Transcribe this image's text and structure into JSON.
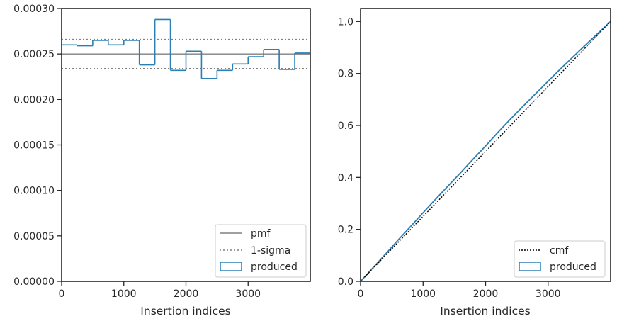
{
  "colors": {
    "hist": "#2a7fb3",
    "pmf": "#808080",
    "sigma": "#808080",
    "cmf": "#000000",
    "axis": "#262626"
  },
  "chart_data": [
    {
      "type": "step",
      "xlabel": "Insertion indices",
      "ylabel": "",
      "xlim": [
        0,
        4000
      ],
      "ylim": [
        0,
        0.0003
      ],
      "xticks": [
        0,
        1000,
        2000,
        3000
      ],
      "xtick_labels": [
        "0",
        "1000",
        "2000",
        "3000"
      ],
      "yticks": [
        0,
        5e-05,
        0.0001,
        0.00015,
        0.0002,
        0.00025,
        0.0003
      ],
      "ytick_labels": [
        "0.00000",
        "0.00005",
        "0.00010",
        "0.00015",
        "0.00020",
        "0.00025",
        "0.00030"
      ],
      "pmf": 0.00025,
      "sigma_band": [
        0.000234,
        0.000266
      ],
      "bin_edges": [
        0,
        250,
        500,
        750,
        1000,
        1250,
        1500,
        1750,
        2000,
        2250,
        2500,
        2750,
        3000,
        3250,
        3500,
        3750,
        4000
      ],
      "produced": [
        0.00026,
        0.000259,
        0.000265,
        0.00026,
        0.000265,
        0.000238,
        0.000288,
        0.000232,
        0.000253,
        0.000223,
        0.000232,
        0.000239,
        0.000247,
        0.000255,
        0.000233,
        0.000251
      ],
      "legend_position": "lower right",
      "legend": [
        "pmf",
        "1-sigma",
        "produced"
      ]
    },
    {
      "type": "step",
      "xlabel": "Insertion indices",
      "ylabel": "",
      "xlim": [
        0,
        4000
      ],
      "ylim": [
        0,
        1.05
      ],
      "xticks": [
        0,
        1000,
        2000,
        3000
      ],
      "xtick_labels": [
        "0",
        "1000",
        "2000",
        "3000"
      ],
      "yticks": [
        0,
        0.2,
        0.4,
        0.6,
        0.8,
        1.0
      ],
      "ytick_labels": [
        "0.0",
        "0.2",
        "0.4",
        "0.6",
        "0.8",
        "1.0"
      ],
      "cmf_x": [
        0,
        4000
      ],
      "cmf_y": [
        0,
        1
      ],
      "produced_x": [
        0,
        200,
        400,
        600,
        800,
        1000,
        1200,
        1400,
        1600,
        1800,
        2000,
        2200,
        2400,
        2600,
        2800,
        3000,
        3200,
        3400,
        3600,
        3800,
        4000
      ],
      "produced_y": [
        0,
        0.053,
        0.105,
        0.159,
        0.211,
        0.264,
        0.316,
        0.367,
        0.418,
        0.47,
        0.521,
        0.574,
        0.625,
        0.674,
        0.722,
        0.77,
        0.818,
        0.864,
        0.91,
        0.955,
        1.0
      ],
      "legend_position": "lower right",
      "legend": [
        "cmf",
        "produced"
      ]
    }
  ]
}
